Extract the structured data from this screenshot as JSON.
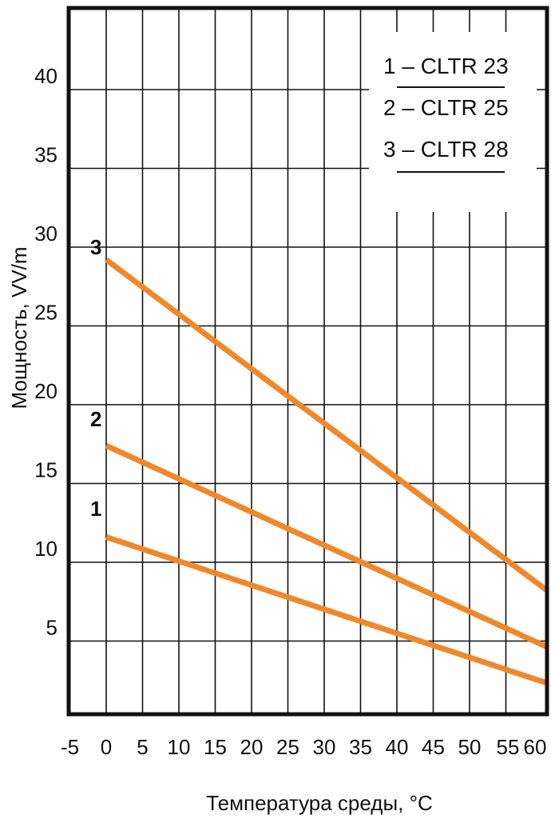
{
  "chart_data": {
    "type": "line",
    "xlabel": "Температура среды, °C",
    "ylabel": "Мощность, VV/m",
    "x_ticks": [
      "-5",
      "0",
      "5",
      "10",
      "15",
      "20",
      "25",
      "30",
      "35",
      "40",
      "45",
      "50",
      "55",
      "60"
    ],
    "y_ticks": [
      "5",
      "10",
      "15",
      "20",
      "25",
      "30",
      "35",
      "40"
    ],
    "legend": [
      "1 – CLTR 23",
      "2 – CLTR 25",
      "3 – CLTR 28"
    ],
    "series_labels": [
      "1",
      "2",
      "3"
    ],
    "grid": true,
    "series": [
      {
        "label": "1",
        "color": "#f0882a",
        "points": [
          [
            0,
            11.6
          ],
          [
            60,
            2.4
          ]
        ]
      },
      {
        "label": "2",
        "color": "#f0882a",
        "points": [
          [
            0,
            17.4
          ],
          [
            60,
            4.7
          ]
        ]
      },
      {
        "label": "3",
        "color": "#f0882a",
        "points": [
          [
            0,
            29.2
          ],
          [
            60,
            8.3
          ]
        ]
      }
    ]
  }
}
